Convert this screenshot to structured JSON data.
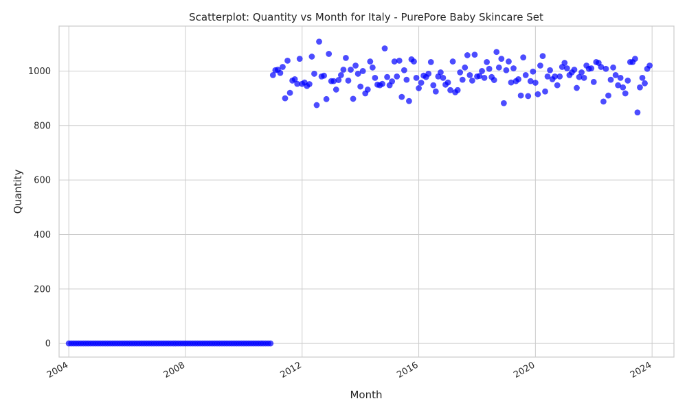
{
  "chart_data": {
    "type": "scatter",
    "title": "Scatterplot: Quantity vs Month for Italy - PurePore Baby Skincare Set",
    "xlabel": "Month",
    "ylabel": "Quantity",
    "x_ticks": [
      "2004",
      "2008",
      "2012",
      "2016",
      "2020",
      "2024"
    ],
    "y_ticks": [
      "0",
      "200",
      "400",
      "600",
      "800",
      "1000"
    ],
    "xlim": [
      "2003-09",
      "2024-10"
    ],
    "ylim": [
      -50,
      1165
    ],
    "grid": true,
    "legend": "none",
    "marker_color": "#0000ff",
    "series": [
      {
        "name": "",
        "x": [
          "2004-01",
          "2004-02",
          "2004-03",
          "2004-04",
          "2004-05",
          "2004-06",
          "2004-07",
          "2004-08",
          "2004-09",
          "2004-10",
          "2004-11",
          "2004-12",
          "2005-01",
          "2005-02",
          "2005-03",
          "2005-04",
          "2005-05",
          "2005-06",
          "2005-07",
          "2005-08",
          "2005-09",
          "2005-10",
          "2005-11",
          "2005-12",
          "2006-01",
          "2006-02",
          "2006-03",
          "2006-04",
          "2006-05",
          "2006-06",
          "2006-07",
          "2006-08",
          "2006-09",
          "2006-10",
          "2006-11",
          "2006-12",
          "2007-01",
          "2007-02",
          "2007-03",
          "2007-04",
          "2007-05",
          "2007-06",
          "2007-07",
          "2007-08",
          "2007-09",
          "2007-10",
          "2007-11",
          "2007-12",
          "2008-01",
          "2008-02",
          "2008-03",
          "2008-04",
          "2008-05",
          "2008-06",
          "2008-07",
          "2008-08",
          "2008-09",
          "2008-10",
          "2008-11",
          "2008-12",
          "2009-01",
          "2009-02",
          "2009-03",
          "2009-04",
          "2009-05",
          "2009-06",
          "2009-07",
          "2009-08",
          "2009-09",
          "2009-10",
          "2009-11",
          "2009-12",
          "2010-01",
          "2010-02",
          "2010-03",
          "2010-04",
          "2010-05",
          "2010-06",
          "2010-07",
          "2010-08",
          "2010-09",
          "2010-10",
          "2010-11",
          "2010-12",
          "2011-01",
          "2011-02",
          "2011-03",
          "2011-04",
          "2011-05",
          "2011-06",
          "2011-07",
          "2011-08",
          "2011-09",
          "2011-10",
          "2011-11",
          "2011-12",
          "2012-01",
          "2012-02",
          "2012-03",
          "2012-04",
          "2012-05",
          "2012-06",
          "2012-07",
          "2012-08",
          "2012-09",
          "2012-10",
          "2012-11",
          "2012-12",
          "2013-01",
          "2013-02",
          "2013-03",
          "2013-04",
          "2013-05",
          "2013-06",
          "2013-07",
          "2013-08",
          "2013-09",
          "2013-10",
          "2013-11",
          "2013-12",
          "2014-01",
          "2014-02",
          "2014-03",
          "2014-04",
          "2014-05",
          "2014-06",
          "2014-07",
          "2014-08",
          "2014-09",
          "2014-10",
          "2014-11",
          "2014-12",
          "2015-01",
          "2015-02",
          "2015-03",
          "2015-04",
          "2015-05",
          "2015-06",
          "2015-07",
          "2015-08",
          "2015-09",
          "2015-10",
          "2015-11",
          "2015-12",
          "2016-01",
          "2016-02",
          "2016-03",
          "2016-04",
          "2016-05",
          "2016-06",
          "2016-07",
          "2016-08",
          "2016-09",
          "2016-10",
          "2016-11",
          "2016-12",
          "2017-01",
          "2017-02",
          "2017-03",
          "2017-04",
          "2017-05",
          "2017-06",
          "2017-07",
          "2017-08",
          "2017-09",
          "2017-10",
          "2017-11",
          "2017-12",
          "2018-01",
          "2018-02",
          "2018-03",
          "2018-04",
          "2018-05",
          "2018-06",
          "2018-07",
          "2018-08",
          "2018-09",
          "2018-10",
          "2018-11",
          "2018-12",
          "2019-01",
          "2019-02",
          "2019-03",
          "2019-04",
          "2019-05",
          "2019-06",
          "2019-07",
          "2019-08",
          "2019-09",
          "2019-10",
          "2019-11",
          "2019-12",
          "2020-01",
          "2020-02",
          "2020-03",
          "2020-04",
          "2020-05",
          "2020-06",
          "2020-07",
          "2020-08",
          "2020-09",
          "2020-10",
          "2020-11",
          "2020-12",
          "2021-01",
          "2021-02",
          "2021-03",
          "2021-04",
          "2021-05",
          "2021-06",
          "2021-07",
          "2021-08",
          "2021-09",
          "2021-10",
          "2021-11",
          "2021-12",
          "2022-01",
          "2022-02",
          "2022-03",
          "2022-04",
          "2022-05",
          "2022-06",
          "2022-07",
          "2022-08",
          "2022-09",
          "2022-10",
          "2022-11",
          "2022-12",
          "2023-01",
          "2023-02",
          "2023-03",
          "2023-04",
          "2023-05",
          "2023-06",
          "2023-07",
          "2023-08",
          "2023-09",
          "2023-10",
          "2023-11",
          "2023-12"
        ],
        "y": [
          0,
          0,
          0,
          0,
          0,
          0,
          0,
          0,
          0,
          0,
          0,
          0,
          0,
          0,
          0,
          0,
          0,
          0,
          0,
          0,
          0,
          0,
          0,
          0,
          0,
          0,
          0,
          0,
          0,
          0,
          0,
          0,
          0,
          0,
          0,
          0,
          0,
          0,
          0,
          0,
          0,
          0,
          0,
          0,
          0,
          0,
          0,
          0,
          0,
          0,
          0,
          0,
          0,
          0,
          0,
          0,
          0,
          0,
          0,
          0,
          0,
          0,
          0,
          0,
          0,
          0,
          0,
          0,
          0,
          0,
          0,
          0,
          0,
          0,
          0,
          0,
          0,
          0,
          0,
          0,
          0,
          0,
          0,
          0,
          985,
          1003,
          1005,
          993,
          1015,
          900,
          1038,
          920,
          965,
          970,
          953,
          1045,
          953,
          958,
          945,
          952,
          1053,
          990,
          875,
          1108,
          980,
          983,
          897,
          1063,
          963,
          963,
          932,
          967,
          985,
          1005,
          1048,
          965,
          1005,
          898,
          1020,
          990,
          943,
          1000,
          918,
          932,
          1035,
          1013,
          975,
          950,
          948,
          953,
          1083,
          978,
          948,
          962,
          1035,
          980,
          1038,
          905,
          1003,
          968,
          890,
          1043,
          1035,
          975,
          937,
          957,
          983,
          978,
          990,
          1033,
          948,
          925,
          980,
          995,
          975,
          950,
          958,
          930,
          1035,
          922,
          930,
          995,
          968,
          1013,
          1058,
          985,
          965,
          1060,
          980,
          982,
          1000,
          975,
          1033,
          1008,
          978,
          967,
          1070,
          1013,
          1045,
          882,
          1003,
          1035,
          958,
          1010,
          963,
          970,
          910,
          1050,
          985,
          908,
          963,
          998,
          957,
          915,
          1020,
          1055,
          925,
          980,
          1003,
          970,
          980,
          948,
          980,
          1015,
          1030,
          1010,
          985,
          995,
          1005,
          938,
          978,
          995,
          975,
          1020,
          1008,
          1010,
          960,
          1033,
          1030,
          1015,
          888,
          1008,
          910,
          968,
          1013,
          985,
          948,
          975,
          940,
          918,
          965,
          1033,
          1033,
          1045,
          848,
          940,
          975,
          955,
          1008,
          1020
        ]
      }
    ]
  }
}
